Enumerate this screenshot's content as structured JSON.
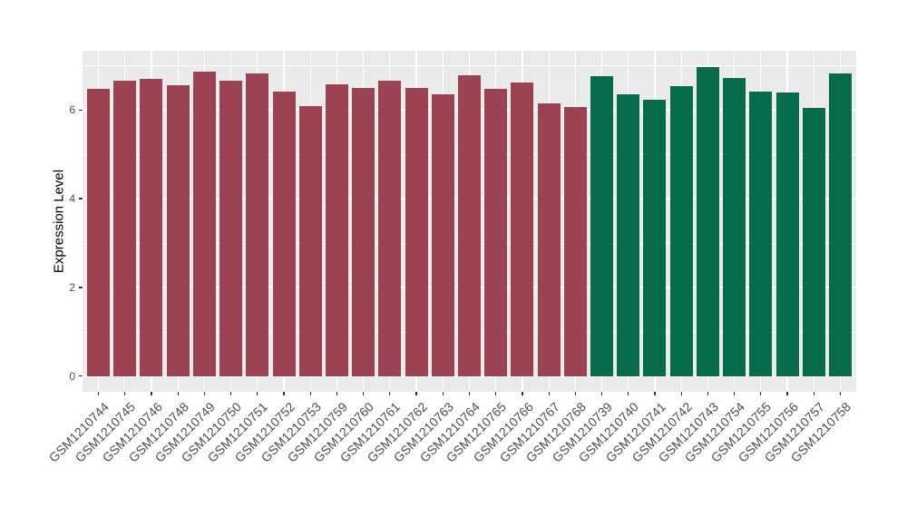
{
  "chart_data": {
    "type": "bar",
    "title": "",
    "xlabel": "",
    "ylabel": "Expression Level",
    "ylim": [
      -0.35,
      7.33
    ],
    "yticks": [
      0,
      2,
      4,
      6
    ],
    "minor_yticks": [
      1,
      3,
      5,
      7
    ],
    "grid": true,
    "legend": "none",
    "categories": [
      "GSM1210744",
      "GSM1210745",
      "GSM1210746",
      "GSM1210748",
      "GSM1210749",
      "GSM1210750",
      "GSM1210751",
      "GSM1210752",
      "GSM1210753",
      "GSM1210759",
      "GSM1210760",
      "GSM1210761",
      "GSM1210762",
      "GSM1210763",
      "GSM1210764",
      "GSM1210765",
      "GSM1210766",
      "GSM1210767",
      "GSM1210768",
      "GSM1210739",
      "GSM1210740",
      "GSM1210741",
      "GSM1210742",
      "GSM1210743",
      "GSM1210754",
      "GSM1210755",
      "GSM1210756",
      "GSM1210757",
      "GSM1210758"
    ],
    "values": [
      6.48,
      6.66,
      6.69,
      6.55,
      6.87,
      6.66,
      6.83,
      6.41,
      6.08,
      6.58,
      6.5,
      6.65,
      6.5,
      6.35,
      6.77,
      6.47,
      6.61,
      6.14,
      6.06,
      6.76,
      6.35,
      6.23,
      6.53,
      6.96,
      6.71,
      6.42,
      6.39,
      6.04,
      6.81
    ],
    "bar_colors": [
      "#9B4352",
      "#9B4352",
      "#9B4352",
      "#9B4352",
      "#9B4352",
      "#9B4352",
      "#9B4352",
      "#9B4352",
      "#9B4352",
      "#9B4352",
      "#9B4352",
      "#9B4352",
      "#9B4352",
      "#9B4352",
      "#9B4352",
      "#9B4352",
      "#9B4352",
      "#9B4352",
      "#9B4352",
      "#056B4B",
      "#056B4B",
      "#056B4B",
      "#056B4B",
      "#056B4B",
      "#056B4B",
      "#056B4B",
      "#056B4B",
      "#056B4B",
      "#056B4B"
    ],
    "group_colors": {
      "red": "#9B4352",
      "green": "#056B4B"
    }
  },
  "style": {
    "panel_bg": "#EBEBEB",
    "grid_color": "#FFFFFF",
    "axis_text_color": "#4D4D4D",
    "axis_title_color": "#000000",
    "tick_mark_color": "#333333",
    "page_bg": "#FFFFFF"
  }
}
